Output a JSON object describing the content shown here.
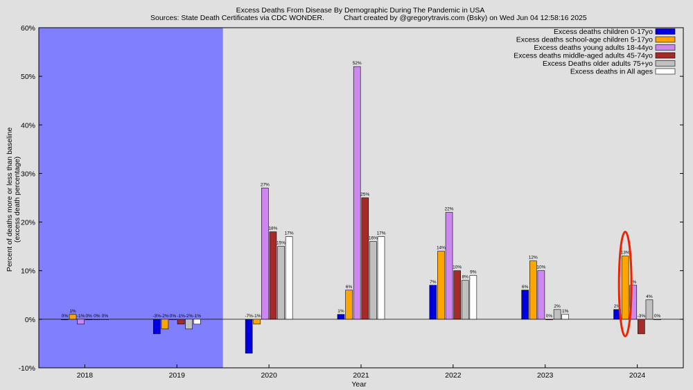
{
  "chart_data": {
    "type": "bar",
    "title": "Excess Deaths From Disease By Demographic During The Pandemic in USA",
    "subtitle_left": "Sources: State Death Certificates via CDC WONDER.",
    "subtitle_right": "Chart created by @gregorytravis.com (Bsky) on Wed Jun 04 12:58:16 2025",
    "xlabel": "Year",
    "ylabel_line1": "Percent of deaths more or less than baseline",
    "ylabel_line2": "(excess death percentage)",
    "ylim": [
      -10,
      60
    ],
    "yticks": [
      "-10%",
      "0%",
      "10%",
      "20%",
      "30%",
      "40%",
      "50%",
      "60%"
    ],
    "categories": [
      "2018",
      "2019",
      "2020",
      "2021",
      "2022",
      "2023",
      "2024"
    ],
    "shaded_categories": [
      "2018",
      "2019"
    ],
    "shade_color": "#8080ff",
    "legend_position": "top-right",
    "grid": false,
    "series": [
      {
        "name": "Excess deaths children 0-17yo",
        "color": "#0000dd",
        "values": [
          0,
          -3,
          -7,
          1,
          7,
          6,
          2
        ],
        "labels": [
          "0%",
          "-3%",
          "-7%",
          "1%",
          "7%",
          "6%",
          "2%"
        ]
      },
      {
        "name": "Excess deaths school-age children 5-17yo",
        "color": "#ffa500",
        "values": [
          1,
          -2,
          -1,
          6,
          14,
          12,
          13
        ],
        "labels": [
          "1%",
          "-2%",
          "-1%",
          "6%",
          "14%",
          "12%",
          "13%"
        ]
      },
      {
        "name": "Excess deaths young adults 18-44yo",
        "color": "#cc88ee",
        "values": [
          -1,
          0,
          27,
          52,
          22,
          10,
          7
        ],
        "labels": [
          "-1%",
          "0%",
          "27%",
          "52%",
          "22%",
          "10%",
          "7%"
        ]
      },
      {
        "name": "Excess deaths middle-aged adults 45-74yo",
        "color": "#a52a2a",
        "values": [
          0,
          -1,
          18,
          25,
          10,
          0,
          -3
        ],
        "labels": [
          "0%",
          "-1%",
          "18%",
          "25%",
          "10%",
          "0%",
          "-3%"
        ]
      },
      {
        "name": "Excess Deaths older adults 75+yo",
        "color": "#c0c0c0",
        "values": [
          0,
          -2,
          15,
          16,
          8,
          2,
          4
        ],
        "labels": [
          "0%",
          "-2%",
          "15%",
          "16%",
          "8%",
          "2%",
          "4%"
        ]
      },
      {
        "name": "Excess deaths in All ages",
        "color": "#ffffff",
        "values": [
          0,
          -1,
          17,
          17,
          9,
          1,
          0
        ],
        "labels": [
          "0%",
          "-1%",
          "17%",
          "17%",
          "9%",
          "1%",
          "0%"
        ]
      }
    ],
    "annotation": {
      "type": "ellipse",
      "color": "#ee2200",
      "category": "2024",
      "series_index": 1
    }
  }
}
